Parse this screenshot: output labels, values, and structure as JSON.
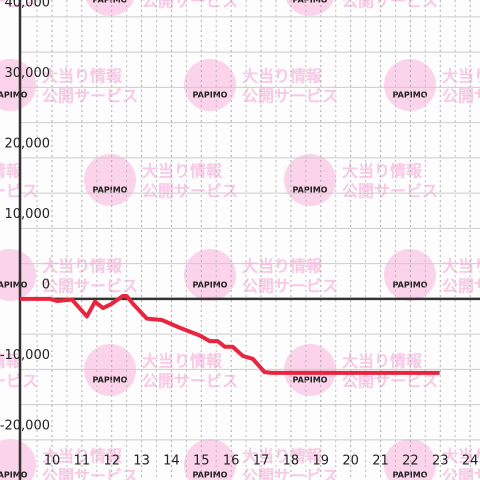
{
  "watermark": {
    "logo": "PAPIMO",
    "line1": "大当り情報",
    "line2": "公開サービス"
  },
  "chart_data": {
    "type": "line",
    "xlim": [
      8.93,
      24.33
    ],
    "ylim": [
      -25700,
      42400
    ],
    "xticks": [
      10,
      11,
      12,
      13,
      14,
      15,
      16,
      17,
      18,
      19,
      20,
      21,
      22,
      23,
      24
    ],
    "xminorticks": [
      9.5,
      10.5,
      11.5,
      12.5,
      13.5,
      14.5,
      15.5,
      16.5,
      17.5,
      18.5,
      19.5,
      20.5,
      21.5,
      22.5,
      23.5
    ],
    "yticks": [
      {
        "value": -20000,
        "label": "-20,000"
      },
      {
        "value": -10000,
        "label": "-10,000"
      },
      0,
      {
        "value": 10000,
        "label": "10,000"
      },
      {
        "value": 20000,
        "label": "20,000"
      },
      {
        "value": 30000,
        "label": "30,000"
      },
      {
        "value": 40000,
        "label": "40,000"
      }
    ],
    "yminorticks": [
      -15000,
      -5000,
      5000,
      15000,
      25000,
      35000
    ],
    "grid": true,
    "series": [
      {
        "color": "#e8243f",
        "x": [
          8.93,
          9.93,
          10.17,
          10.67,
          11.17,
          11.44,
          11.71,
          12.0,
          12.37,
          12.5,
          12.71,
          13.18,
          13.68,
          14.28,
          14.95,
          15.28,
          15.55,
          15.79,
          16.05,
          16.39,
          16.72,
          17.12,
          17.36,
          22.98
        ],
        "values": [
          0,
          0,
          -300,
          -100,
          -2500,
          -400,
          -1300,
          -700,
          400,
          400,
          -700,
          -2800,
          -3000,
          -4100,
          -5200,
          -6000,
          -6000,
          -6800,
          -6800,
          -8100,
          -8500,
          -10400,
          -10500,
          -10500
        ]
      }
    ]
  }
}
